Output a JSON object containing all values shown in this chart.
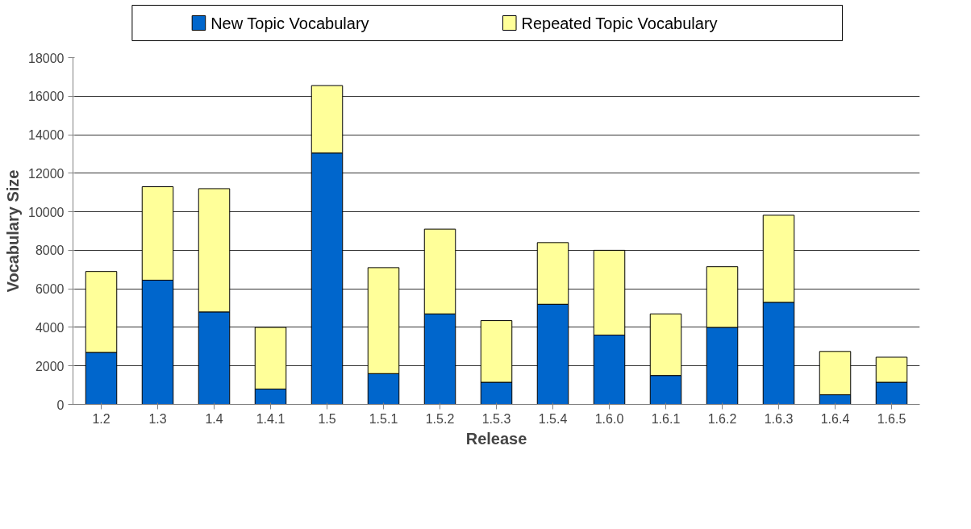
{
  "chart_data": {
    "type": "bar",
    "stacked": true,
    "xlabel": "Release",
    "ylabel": "Vocabulary Size",
    "categories": [
      "1.2",
      "1.3",
      "1.4",
      "1.4.1",
      "1.5",
      "1.5.1",
      "1.5.2",
      "1.5.3",
      "1.5.4",
      "1.6.0",
      "1.6.1",
      "1.6.2",
      "1.6.3",
      "1.6.4",
      "1.6.5"
    ],
    "series": [
      {
        "name": "New Topic Vocabulary",
        "color": "#0066cc",
        "values": [
          2700,
          6450,
          4800,
          800,
          13050,
          1600,
          4700,
          1150,
          5200,
          3600,
          1500,
          4000,
          5300,
          500,
          1150
        ]
      },
      {
        "name": "Repeated Topic Vocabulary",
        "color": "#ffff99",
        "values": [
          4200,
          4850,
          6400,
          3200,
          3500,
          5500,
          4400,
          3200,
          3200,
          4400,
          3200,
          3150,
          4520,
          2250,
          1300
        ]
      }
    ],
    "ylim": [
      0,
      18000
    ],
    "yticks": [
      0,
      2000,
      4000,
      6000,
      8000,
      10000,
      12000,
      14000,
      16000,
      18000
    ],
    "grid": "y",
    "legend": "top"
  }
}
